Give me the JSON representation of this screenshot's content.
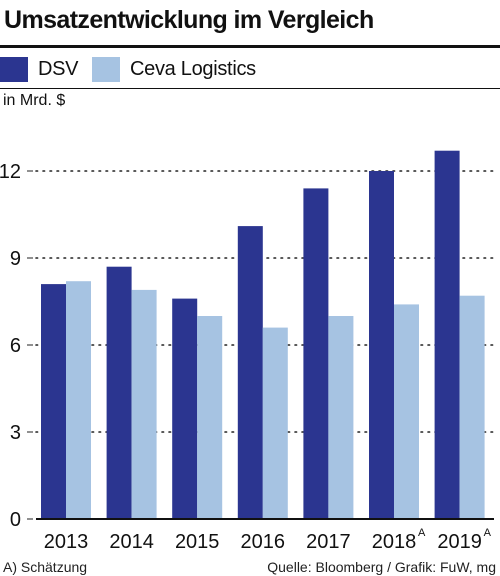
{
  "chart_data": {
    "type": "bar",
    "title": "Umsatzentwicklung im Vergleich",
    "unit_label": "in Mrd. $",
    "categories": [
      "2013",
      "2014",
      "2015",
      "2016",
      "2017",
      "2018",
      "2019"
    ],
    "category_marks": [
      "",
      "",
      "",
      "",
      "",
      "A",
      "A"
    ],
    "series": [
      {
        "name": "DSV",
        "color": "#2b3590",
        "values": [
          8.1,
          8.7,
          7.6,
          10.1,
          11.4,
          12.0,
          12.7
        ]
      },
      {
        "name": "Ceva Logistics",
        "color": "#a6c3e2",
        "values": [
          8.2,
          7.9,
          7.0,
          6.6,
          7.0,
          7.4,
          7.7
        ]
      }
    ],
    "yticks": [
      0,
      3,
      6,
      9,
      12
    ],
    "ylim": [
      0,
      13.5
    ],
    "grid": "dotted horizontal",
    "legend_position": "top-left",
    "footnote": "A) Schätzung",
    "source": "Quelle: Bloomberg / Grafik: FuW, mg"
  }
}
